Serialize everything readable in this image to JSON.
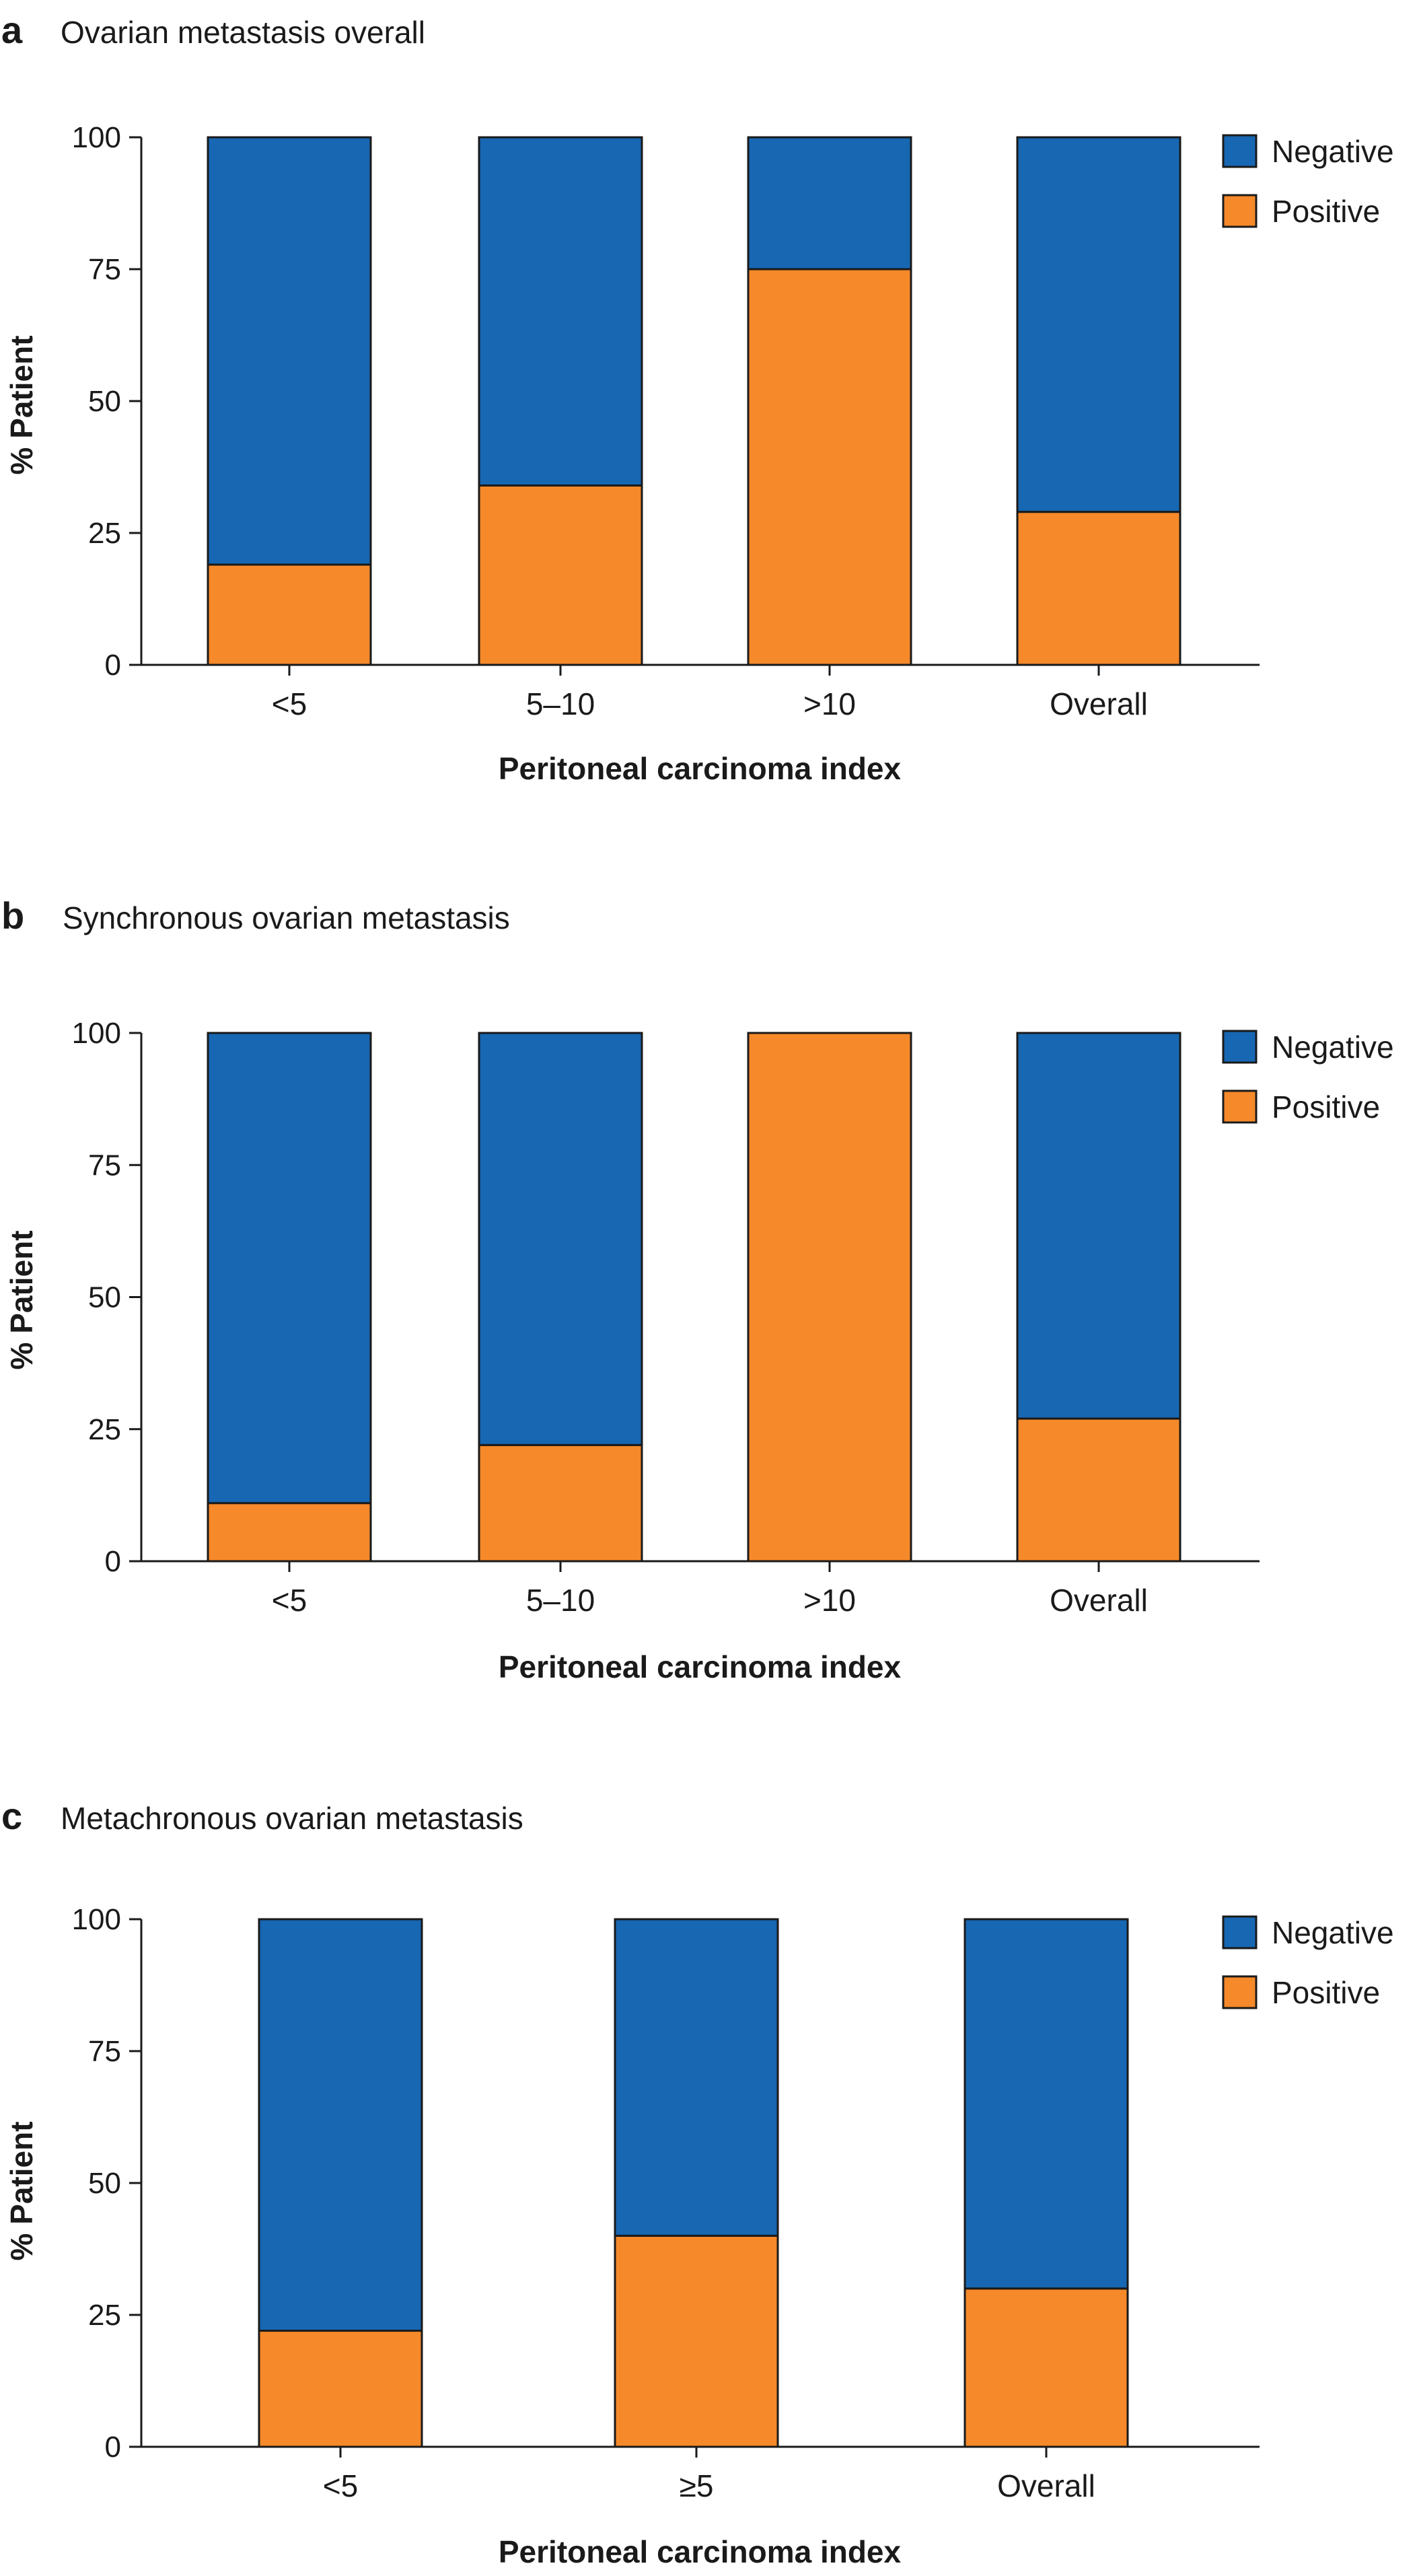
{
  "colors": {
    "negative": "#1767b3",
    "positive": "#f6892a",
    "axis": "#1a1a1a",
    "text": "#1a1a1a"
  },
  "chart_data": [
    {
      "panel_letter": "a",
      "type": "bar",
      "stacked": true,
      "title": "Ovarian metastasis overall",
      "xlabel": "Peritoneal carcinoma index",
      "ylabel": "% Patient",
      "ylim": [
        0,
        100
      ],
      "yticks": [
        0,
        25,
        50,
        75,
        100
      ],
      "categories": [
        "<5",
        "5–10",
        ">10",
        "Overall"
      ],
      "series": [
        {
          "name": "Positive",
          "color": "#f6892a",
          "values": [
            19,
            34,
            75,
            29
          ]
        },
        {
          "name": "Negative",
          "color": "#1767b3",
          "values": [
            81,
            66,
            25,
            71
          ]
        }
      ],
      "legend": {
        "position": "top-right",
        "order": [
          "Negative",
          "Positive"
        ]
      },
      "grid": false
    },
    {
      "panel_letter": "b",
      "type": "bar",
      "stacked": true,
      "title": "Synchronous ovarian metastasis",
      "xlabel": "Peritoneal carcinoma index",
      "ylabel": "% Patient",
      "ylim": [
        0,
        100
      ],
      "yticks": [
        0,
        25,
        50,
        75,
        100
      ],
      "categories": [
        "<5",
        "5–10",
        ">10",
        "Overall"
      ],
      "series": [
        {
          "name": "Positive",
          "color": "#f6892a",
          "values": [
            11,
            22,
            100,
            27
          ]
        },
        {
          "name": "Negative",
          "color": "#1767b3",
          "values": [
            89,
            78,
            0,
            73
          ]
        }
      ],
      "legend": {
        "position": "top-right",
        "order": [
          "Negative",
          "Positive"
        ]
      },
      "grid": false
    },
    {
      "panel_letter": "c",
      "type": "bar",
      "stacked": true,
      "title": "Metachronous ovarian metastasis",
      "xlabel": "Peritoneal carcinoma index",
      "ylabel": "% Patient",
      "ylim": [
        0,
        100
      ],
      "yticks": [
        0,
        25,
        50,
        75,
        100
      ],
      "categories": [
        "<5",
        "≥5",
        "Overall"
      ],
      "series": [
        {
          "name": "Positive",
          "color": "#f6892a",
          "values": [
            22,
            40,
            30
          ]
        },
        {
          "name": "Negative",
          "color": "#1767b3",
          "values": [
            78,
            60,
            70
          ]
        }
      ],
      "legend": {
        "position": "top-right",
        "order": [
          "Negative",
          "Positive"
        ]
      },
      "grid": false
    }
  ]
}
